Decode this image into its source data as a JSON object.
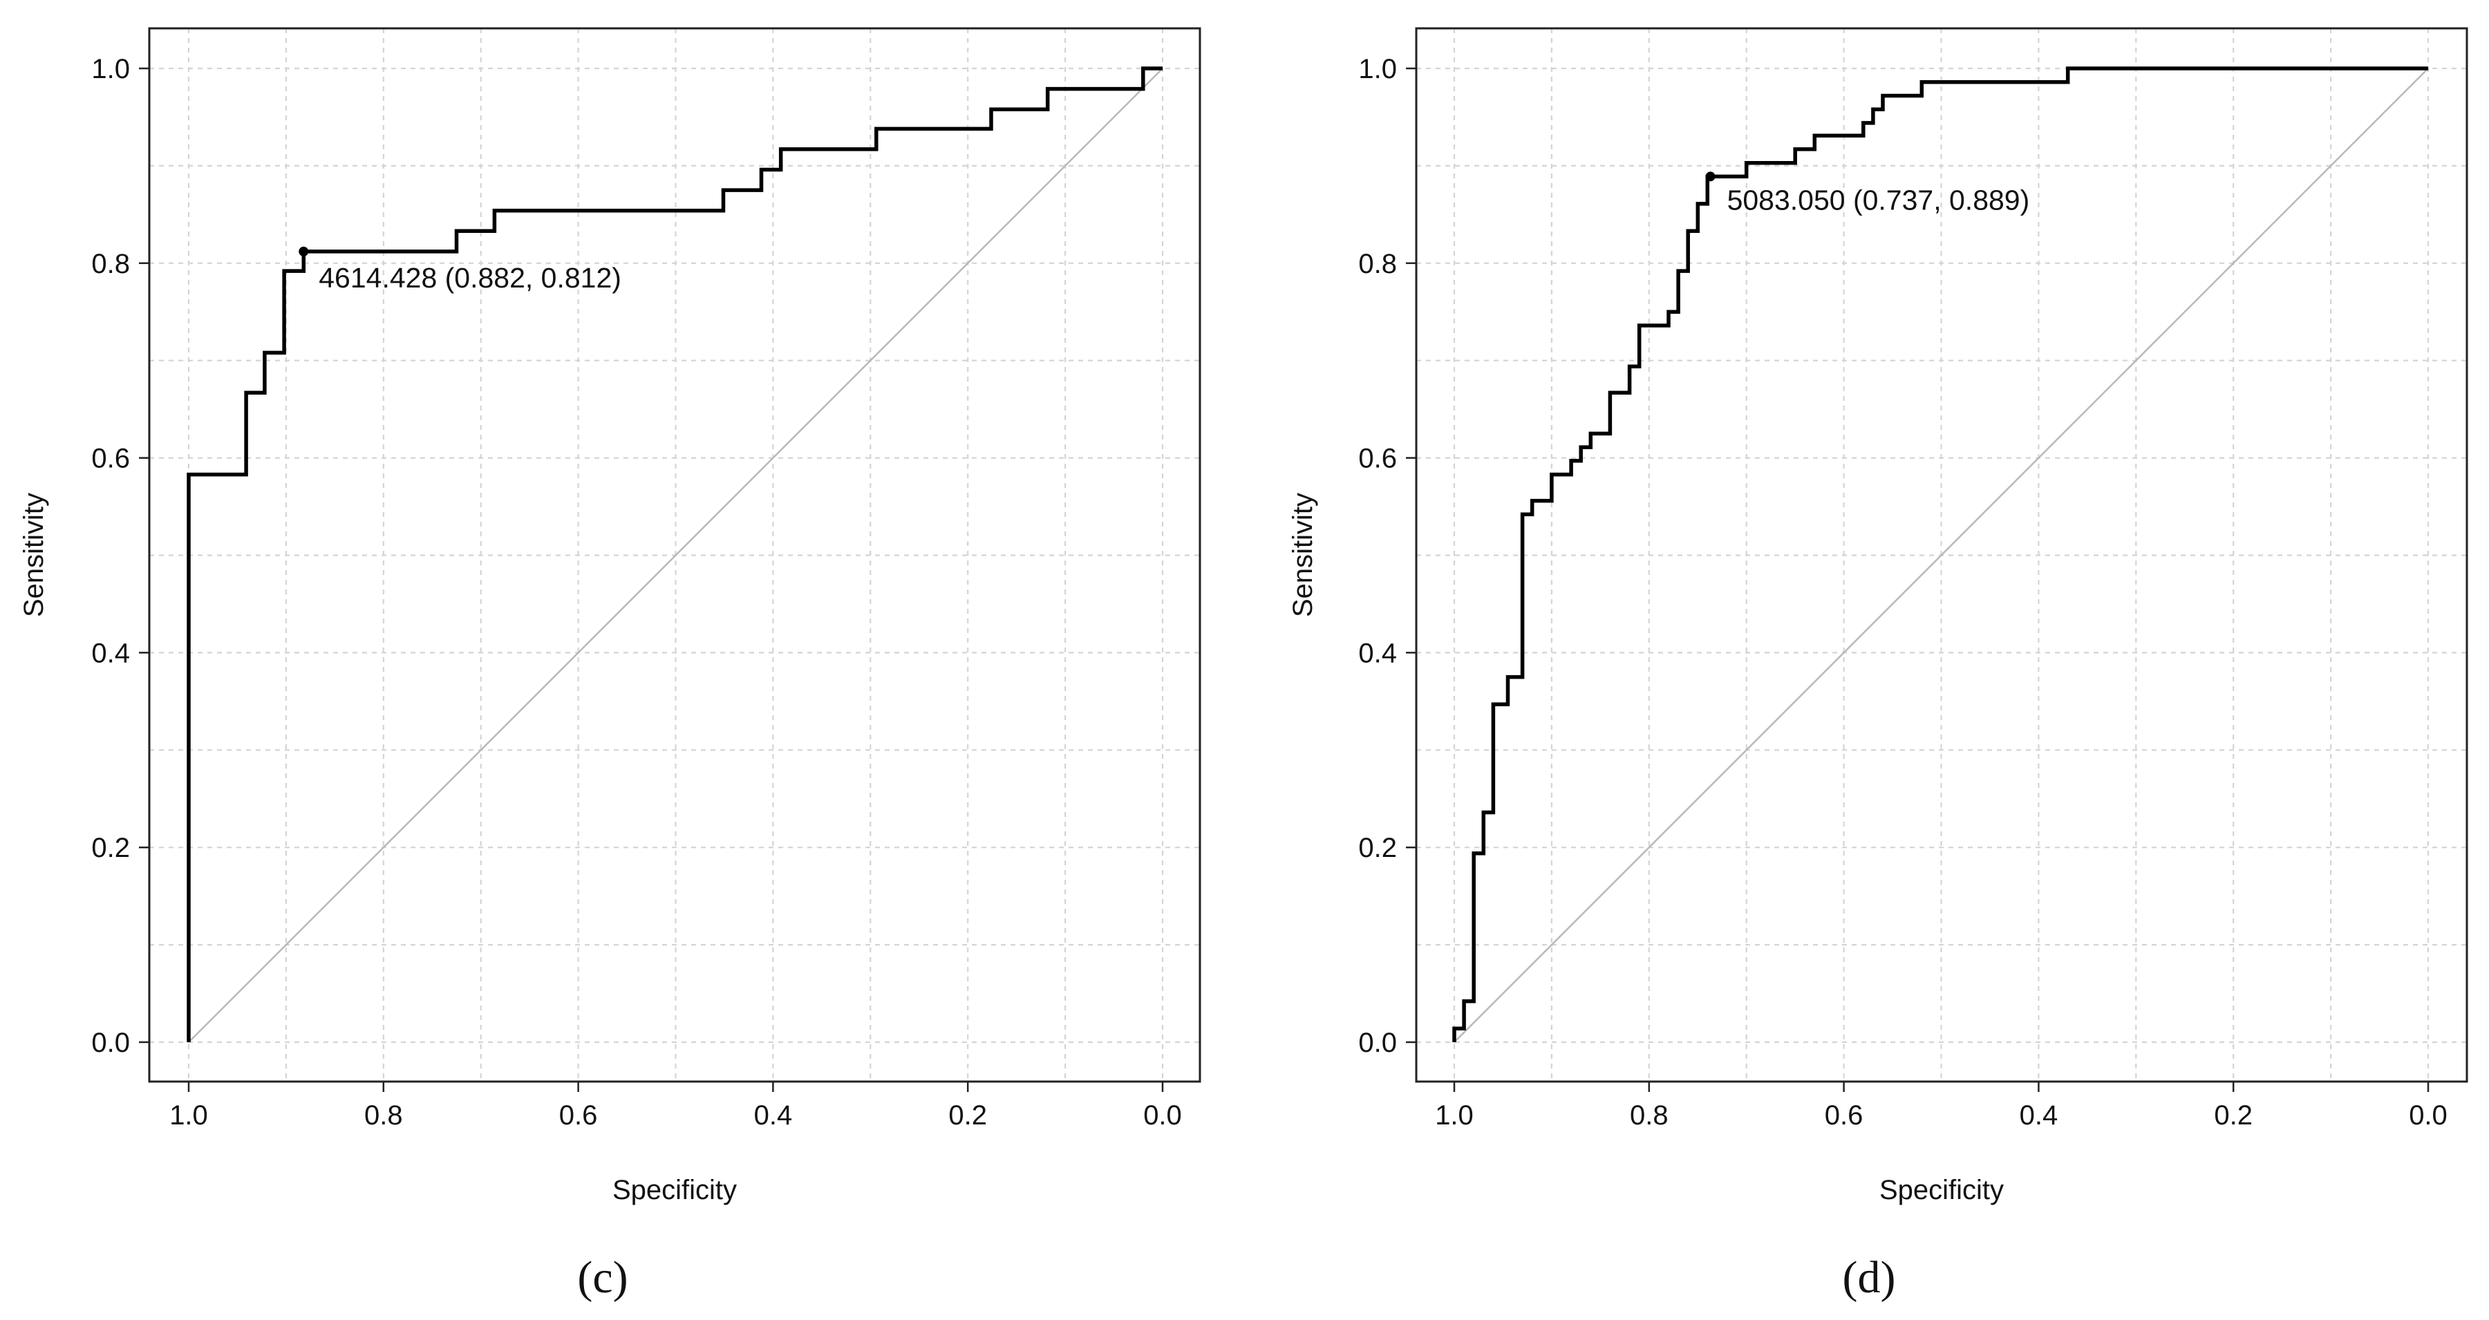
{
  "chart_data": [
    {
      "type": "line",
      "panel_label": "(c)",
      "xlabel": "Specificity",
      "ylabel": "Sensitivity",
      "xlim": [
        1.0,
        0.0
      ],
      "ylim": [
        0.0,
        1.0
      ],
      "x_reversed": true,
      "grid": true,
      "xticks": [
        "1.0",
        "0.8",
        "0.6",
        "0.4",
        "0.2",
        "0.0"
      ],
      "yticks": [
        "0.0",
        "0.2",
        "0.4",
        "0.6",
        "0.8",
        "1.0"
      ],
      "threshold_annotation": "4614.428 (0.882, 0.812)",
      "threshold_point": {
        "specificity": 0.882,
        "sensitivity": 0.812
      },
      "series": [
        {
          "name": "ROC curve",
          "specificity": [
            1.0,
            1.0,
            0.941,
            0.941,
            0.922,
            0.922,
            0.902,
            0.902,
            0.882,
            0.882,
            0.725,
            0.725,
            0.686,
            0.686,
            0.451,
            0.451,
            0.412,
            0.412,
            0.392,
            0.392,
            0.294,
            0.294,
            0.176,
            0.176,
            0.118,
            0.118,
            0.02,
            0.02,
            0.0
          ],
          "sensitivity": [
            0.0,
            0.583,
            0.583,
            0.667,
            0.667,
            0.708,
            0.708,
            0.792,
            0.792,
            0.812,
            0.812,
            0.833,
            0.833,
            0.854,
            0.854,
            0.875,
            0.875,
            0.896,
            0.896,
            0.917,
            0.917,
            0.938,
            0.938,
            0.958,
            0.958,
            0.979,
            0.979,
            1.0,
            1.0
          ]
        },
        {
          "name": "Reference diagonal",
          "specificity": [
            1.0,
            0.0
          ],
          "sensitivity": [
            0.0,
            1.0
          ]
        }
      ]
    },
    {
      "type": "line",
      "panel_label": "(d)",
      "xlabel": "Specificity",
      "ylabel": "Sensitivity",
      "xlim": [
        1.0,
        0.0
      ],
      "ylim": [
        0.0,
        1.0
      ],
      "x_reversed": true,
      "grid": true,
      "xticks": [
        "1.0",
        "0.8",
        "0.6",
        "0.4",
        "0.2",
        "0.0"
      ],
      "yticks": [
        "0.0",
        "0.2",
        "0.4",
        "0.6",
        "0.8",
        "1.0"
      ],
      "threshold_annotation": "5083.050 (0.737, 0.889)",
      "threshold_point": {
        "specificity": 0.737,
        "sensitivity": 0.889
      },
      "series": [
        {
          "name": "ROC curve",
          "specificity": [
            1.0,
            1.0,
            0.99,
            0.99,
            0.98,
            0.98,
            0.97,
            0.97,
            0.96,
            0.96,
            0.945,
            0.945,
            0.93,
            0.93,
            0.92,
            0.92,
            0.9,
            0.9,
            0.88,
            0.88,
            0.87,
            0.87,
            0.86,
            0.86,
            0.84,
            0.84,
            0.82,
            0.82,
            0.81,
            0.81,
            0.78,
            0.78,
            0.77,
            0.77,
            0.76,
            0.76,
            0.75,
            0.75,
            0.74,
            0.74,
            0.7,
            0.7,
            0.65,
            0.65,
            0.63,
            0.63,
            0.58,
            0.58,
            0.57,
            0.57,
            0.56,
            0.56,
            0.52,
            0.52,
            0.37,
            0.37,
            0.0
          ],
          "sensitivity": [
            0.0,
            0.014,
            0.014,
            0.042,
            0.042,
            0.194,
            0.194,
            0.236,
            0.236,
            0.347,
            0.347,
            0.375,
            0.375,
            0.542,
            0.542,
            0.556,
            0.556,
            0.583,
            0.583,
            0.597,
            0.597,
            0.611,
            0.611,
            0.625,
            0.625,
            0.667,
            0.667,
            0.694,
            0.694,
            0.736,
            0.736,
            0.75,
            0.75,
            0.792,
            0.792,
            0.833,
            0.833,
            0.861,
            0.861,
            0.889,
            0.889,
            0.903,
            0.903,
            0.917,
            0.917,
            0.931,
            0.931,
            0.944,
            0.944,
            0.958,
            0.958,
            0.972,
            0.972,
            0.986,
            0.986,
            1.0,
            1.0
          ]
        },
        {
          "name": "Reference diagonal",
          "specificity": [
            1.0,
            0.0
          ],
          "sensitivity": [
            0.0,
            1.0
          ]
        }
      ]
    }
  ]
}
